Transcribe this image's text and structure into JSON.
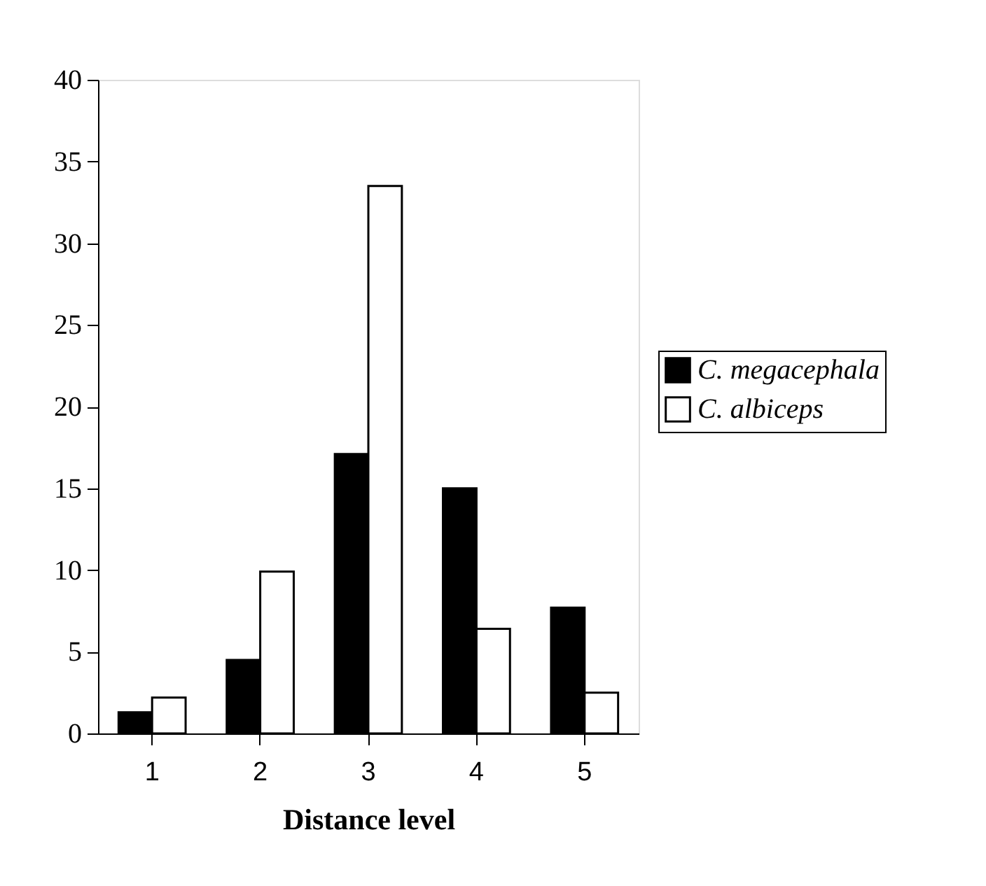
{
  "chart_data": {
    "type": "bar",
    "xlabel": "Distance level",
    "categories": [
      "1",
      "2",
      "3",
      "4",
      "5"
    ],
    "series": [
      {
        "name": "C. megacephala",
        "color": "#000000",
        "values": [
          1.3,
          4.5,
          17.1,
          15.0,
          7.7
        ]
      },
      {
        "name": "C. albiceps",
        "color": "#ffffff",
        "values": [
          2.2,
          9.9,
          33.5,
          6.4,
          2.5
        ]
      }
    ],
    "ylim": [
      0,
      40
    ],
    "yticks": [
      0,
      5,
      10,
      15,
      20,
      25,
      30,
      35,
      40
    ],
    "grid": false,
    "legend": "right"
  }
}
